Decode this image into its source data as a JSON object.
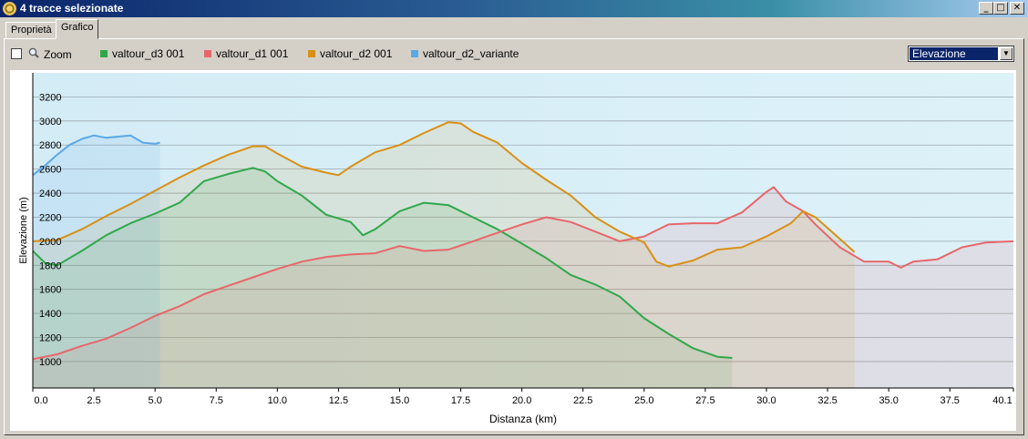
{
  "window": {
    "title": "4 tracce selezionate"
  },
  "tabs": [
    {
      "label": "Proprietà"
    },
    {
      "label": "Grafico"
    }
  ],
  "toolbar": {
    "zoom_label": "Zoom",
    "zoom_checked": false,
    "dropdown_value": "Elevazione"
  },
  "legend": [
    {
      "name": "valtour_d3 001",
      "color": "#2fa84a"
    },
    {
      "name": "valtour_d1 001",
      "color": "#e8666a"
    },
    {
      "name": "valtour_d2 001",
      "color": "#d99015"
    },
    {
      "name": "valtour_d2_variante",
      "color": "#5aa8e6"
    }
  ],
  "chart_data": {
    "type": "area",
    "xlabel": "Distanza  (km)",
    "ylabel": "Elevazione (m)",
    "xlim": [
      0,
      40.1
    ],
    "ylim": [
      780,
      3400
    ],
    "xticks": [
      "0.0",
      "2.5",
      "5.0",
      "7.5",
      "10.0",
      "12.5",
      "15.0",
      "17.5",
      "20.0",
      "22.5",
      "25.0",
      "27.5",
      "30.0",
      "32.5",
      "35.0",
      "37.5",
      "40.1"
    ],
    "yticks": [
      1000,
      1200,
      1400,
      1600,
      1800,
      2000,
      2200,
      2400,
      2600,
      2800,
      3000,
      3200
    ],
    "grid": true,
    "series": [
      {
        "name": "valtour_d3 001",
        "color": "#2fa84a",
        "x": [
          0,
          0.5,
          1,
          2,
          3,
          4,
          5,
          6,
          7,
          8,
          9,
          9.5,
          10,
          11,
          12,
          13,
          13.5,
          14,
          15,
          16,
          17,
          18,
          19,
          20,
          21,
          22,
          23,
          24,
          25,
          26,
          27,
          28,
          28.6
        ],
        "y": [
          1920,
          1820,
          1800,
          1920,
          2050,
          2150,
          2230,
          2320,
          2500,
          2560,
          2610,
          2580,
          2500,
          2380,
          2220,
          2160,
          2050,
          2100,
          2250,
          2320,
          2300,
          2200,
          2100,
          1980,
          1860,
          1720,
          1640,
          1540,
          1360,
          1230,
          1110,
          1040,
          1030
        ]
      },
      {
        "name": "valtour_d1 001",
        "color": "#e8666a",
        "x": [
          0,
          1,
          2,
          3,
          4,
          5,
          6,
          7,
          8,
          9,
          10,
          11,
          12,
          13,
          14,
          15,
          16,
          17,
          18,
          19,
          20,
          21,
          22,
          23,
          24,
          25,
          26,
          27,
          28,
          29,
          30,
          30.3,
          30.8,
          31.5,
          32,
          33,
          34,
          35,
          35.5,
          36,
          37,
          38,
          39,
          40.1
        ],
        "y": [
          1020,
          1060,
          1130,
          1190,
          1280,
          1380,
          1460,
          1560,
          1630,
          1700,
          1770,
          1830,
          1870,
          1890,
          1900,
          1960,
          1920,
          1930,
          2000,
          2070,
          2140,
          2200,
          2160,
          2080,
          2000,
          2040,
          2140,
          2150,
          2150,
          2240,
          2410,
          2450,
          2330,
          2250,
          2140,
          1950,
          1830,
          1830,
          1780,
          1830,
          1850,
          1950,
          1990,
          2000
        ]
      },
      {
        "name": "valtour_d2 001",
        "color": "#d99015",
        "x": [
          0,
          1,
          2,
          3,
          4,
          5,
          6,
          7,
          8,
          9,
          9.5,
          10,
          11,
          12,
          12.5,
          13,
          14,
          15,
          16,
          17,
          17.5,
          18,
          19,
          20,
          21,
          22,
          23,
          24,
          25,
          25.5,
          26,
          27,
          28,
          29,
          30,
          31,
          31.5,
          32,
          33,
          33.6
        ],
        "y": [
          2000,
          2010,
          2100,
          2210,
          2310,
          2420,
          2530,
          2630,
          2720,
          2790,
          2790,
          2730,
          2620,
          2570,
          2550,
          2620,
          2740,
          2800,
          2900,
          2990,
          2980,
          2910,
          2820,
          2650,
          2510,
          2380,
          2200,
          2080,
          1990,
          1830,
          1790,
          1840,
          1930,
          1950,
          2040,
          2150,
          2250,
          2200,
          2020,
          1910
        ]
      },
      {
        "name": "valtour_d2_variante",
        "color": "#5aa8e6",
        "x": [
          0,
          0.5,
          1,
          1.5,
          2,
          2.5,
          3,
          3.5,
          4,
          4.5,
          5,
          5.2
        ],
        "y": [
          2550,
          2630,
          2720,
          2800,
          2850,
          2880,
          2860,
          2870,
          2880,
          2820,
          2810,
          2820
        ]
      }
    ]
  }
}
